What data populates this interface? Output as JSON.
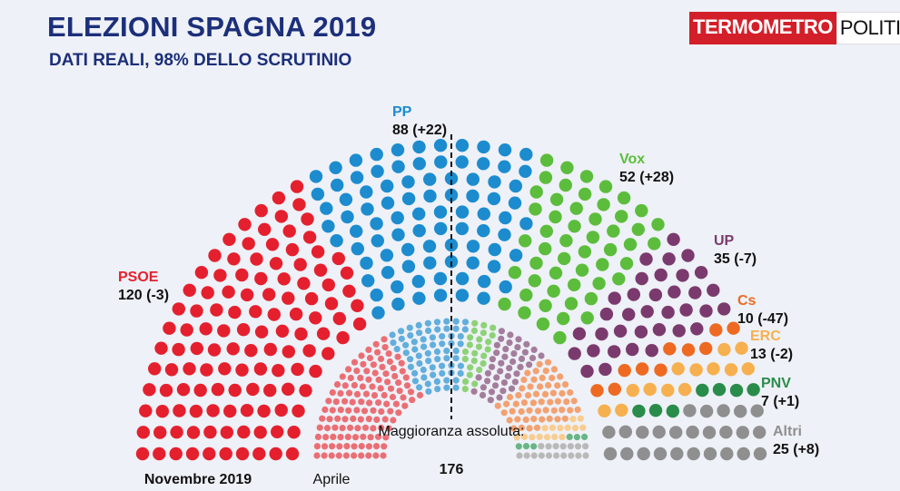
{
  "header": {
    "title": "ELEZIONI SPAGNA 2019",
    "subtitle": "DATI REALI, 98% DELLO SCRUTINIO",
    "logo_part1": "TERMOMETRO",
    "logo_part2": "POLITICO"
  },
  "chart_data": [
    {
      "type": "parliament",
      "name": "Novembre 2019",
      "total_seats": 350,
      "majority_label": "Maggioranza assoluta:",
      "majority": "176",
      "parties": [
        {
          "party": "PSOE",
          "seats": 120,
          "change": "(-3)",
          "label": "120 (-3)",
          "color": "#e5202e"
        },
        {
          "party": "PP",
          "seats": 88,
          "change": "(+22)",
          "label": "88 (+22)",
          "color": "#1c8ccf"
        },
        {
          "party": "Vox",
          "seats": 52,
          "change": "(+28)",
          "label": "52 (+28)",
          "color": "#5cbd3c"
        },
        {
          "party": "UP",
          "seats": 35,
          "change": "(-7)",
          "label": "35 (-7)",
          "color": "#7b3a6e"
        },
        {
          "party": "Cs",
          "seats": 10,
          "change": "(-47)",
          "label": "10 (-47)",
          "color": "#ee6a22"
        },
        {
          "party": "ERC",
          "seats": 13,
          "change": "(-2)",
          "label": "13 (-2)",
          "color": "#f7b04f"
        },
        {
          "party": "PNV",
          "seats": 7,
          "change": "(+1)",
          "label": "7 (+1)",
          "color": "#2a8c4a"
        },
        {
          "party": "Altri",
          "seats": 25,
          "change": "(+8)",
          "label": "25 (+8)",
          "color": "#8f8f8f"
        }
      ]
    },
    {
      "type": "parliament",
      "name": "Aprile",
      "total_seats": 350,
      "parties": [
        {
          "party": "PSOE",
          "seats": 123,
          "color": "#ea6f75"
        },
        {
          "party": "PP",
          "seats": 66,
          "color": "#62aedd"
        },
        {
          "party": "Vox",
          "seats": 24,
          "color": "#8ed278"
        },
        {
          "party": "UP",
          "seats": 42,
          "color": "#a47d9c"
        },
        {
          "party": "Cs",
          "seats": 57,
          "color": "#f3a171"
        },
        {
          "party": "ERC",
          "seats": 15,
          "color": "#f9cc90"
        },
        {
          "party": "PNV",
          "seats": 6,
          "color": "#6ab585"
        },
        {
          "party": "Altri",
          "seats": 17,
          "color": "#b9b9b9"
        }
      ]
    }
  ]
}
